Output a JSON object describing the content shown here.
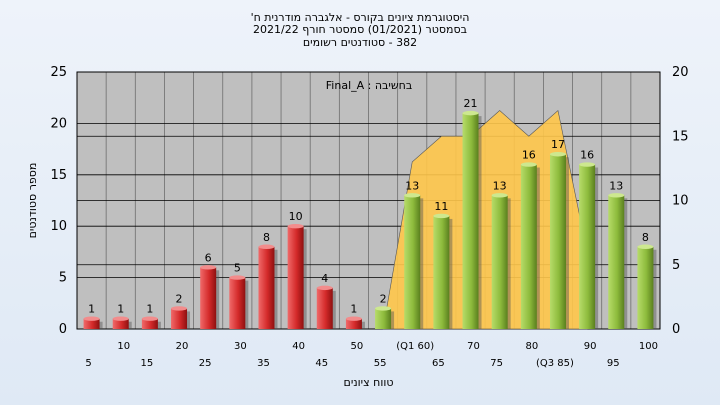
{
  "title_lines": [
    "היסטוגרמת ציונים בקורס - אלגברה מודרנית ח'",
    "בסמסטר  (01/2021)  סמסטר חורף 2021/22",
    "382 - סטודנטים רשומים"
  ],
  "annotation": "בחשיבה : Final_A",
  "colors": {
    "fail_bar": "#d42a2a",
    "pass_bar": "#8dbb3c",
    "area": "#ffc64a",
    "plot_bg": "#bfbfbf",
    "background": "#e6eef8"
  },
  "chart_data": {
    "type": "bar",
    "title": "היסטוגרמת ציונים בקורס - אלגברה מודרנית ח'",
    "xlabel": "טווח ציונים",
    "ylabel": "מספר סטודנטים",
    "ylim": [
      0,
      25
    ],
    "y2lim": [
      0,
      20
    ],
    "yticks": [
      "0",
      "5",
      "10",
      "15",
      "20",
      "25"
    ],
    "y2ticks": [
      "0",
      "5",
      "10",
      "15",
      "20"
    ],
    "grid": true,
    "categories": [
      "5",
      "10",
      "15",
      "20",
      "25",
      "30",
      "35",
      "40",
      "45",
      "50",
      "55",
      "(Q1 60)",
      "65",
      "70",
      "75",
      "80",
      "(Q3 85)",
      "90",
      "95",
      "100"
    ],
    "values": [
      1,
      1,
      1,
      2,
      6,
      5,
      8,
      10,
      4,
      1,
      2,
      13,
      11,
      21,
      13,
      16,
      17,
      16,
      13,
      8
    ],
    "fail_count": 10,
    "area_series": {
      "axis": "secondary",
      "x": [
        "55",
        "(Q1 60)",
        "65",
        "70",
        "75",
        "80",
        "(Q3 85)",
        "90"
      ],
      "values": [
        0,
        13,
        15,
        15,
        17,
        15,
        17,
        6
      ]
    }
  }
}
